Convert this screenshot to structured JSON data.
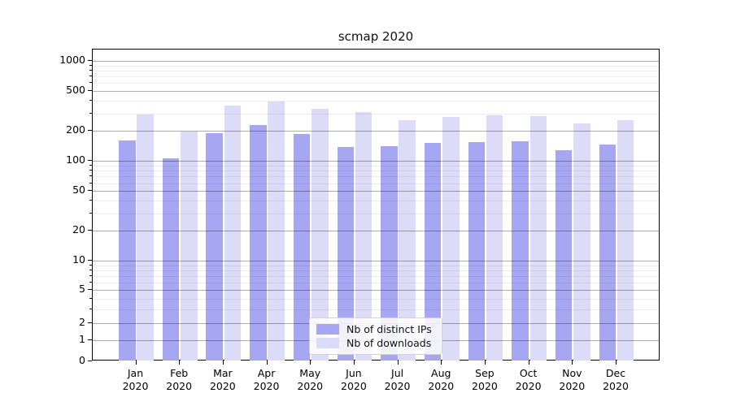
{
  "chart_data": {
    "type": "bar",
    "title": "scmap 2020",
    "categories": [
      "Jan",
      "Feb",
      "Mar",
      "Apr",
      "May",
      "Jun",
      "Jul",
      "Aug",
      "Sep",
      "Oct",
      "Nov",
      "Dec"
    ],
    "category_year": "2020",
    "series": [
      {
        "name": "Nb of distinct IPs",
        "color": "#a6a6f2",
        "values": [
          160,
          106,
          190,
          228,
          188,
          139,
          141,
          152,
          155,
          158,
          129,
          146
        ]
      },
      {
        "name": "Nb of downloads",
        "color": "#dcdcf8",
        "values": [
          292,
          197,
          357,
          392,
          335,
          310,
          257,
          275,
          285,
          280,
          240,
          254
        ]
      }
    ],
    "yscale": "asinh",
    "y_major_ticks": [
      0,
      1,
      2,
      5,
      10,
      20,
      50,
      100,
      200,
      500,
      1000
    ],
    "y_minor_ticks": [
      3,
      4,
      6,
      7,
      8,
      9,
      30,
      40,
      60,
      70,
      80,
      90,
      300,
      400,
      600,
      700,
      800,
      900
    ],
    "ylim": [
      0,
      1300
    ],
    "grid": "on",
    "legend_position": "lower center",
    "colors": {
      "major_grid": "#b0b0b0",
      "minor_grid": "#ededed",
      "axis": "#000000",
      "background": "#ffffff",
      "text": "#000000"
    }
  }
}
